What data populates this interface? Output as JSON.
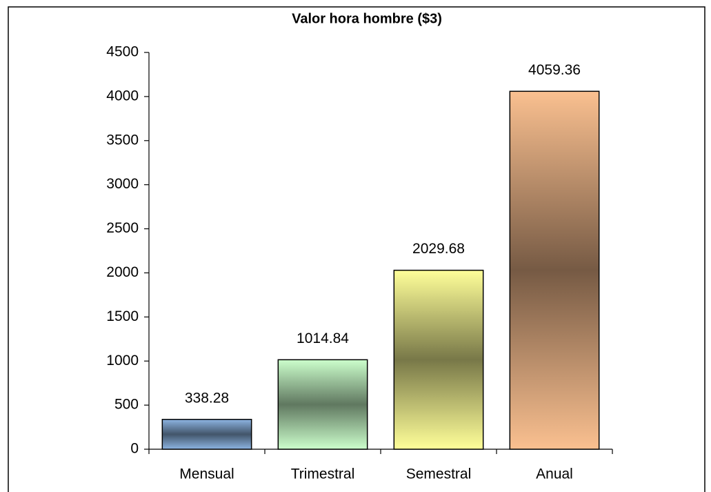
{
  "chart_data": {
    "type": "bar",
    "title": "Valor hora hombre ($3)",
    "categories": [
      "Mensual",
      "Trimestral",
      "Semestral",
      "Anual"
    ],
    "values": [
      338.28,
      1014.84,
      2029.68,
      4059.36
    ],
    "colors": [
      "#8db4e2",
      "#ccffcc",
      "#ffff99",
      "#fac090"
    ],
    "ylim": [
      0,
      4500
    ],
    "yticks": [
      0,
      500,
      1000,
      1500,
      2000,
      2500,
      3000,
      3500,
      4000,
      4500
    ],
    "grid": false
  }
}
